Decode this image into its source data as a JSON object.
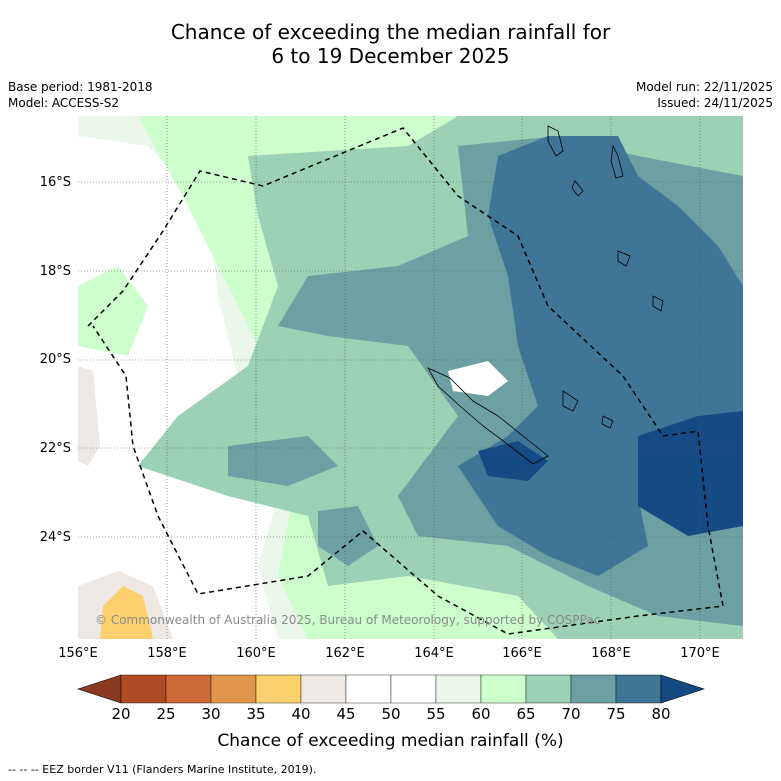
{
  "title": {
    "line1": "Chance of exceeding the median rainfall for",
    "line2": "6 to 19 December 2025"
  },
  "meta": {
    "base_period": "Base period: 1981-2018",
    "model": "Model: ACCESS-S2",
    "model_run": "Model run: 22/11/2025",
    "issued": "Issued: 24/11/2025"
  },
  "axes": {
    "lat_labels": [
      "16°S",
      "18°S",
      "20°S",
      "22°S",
      "24°S"
    ],
    "lon_labels": [
      "156°E",
      "158°E",
      "160°E",
      "162°E",
      "164°E",
      "166°E",
      "168°E",
      "170°E"
    ]
  },
  "copyright": "© Commonwealth of Australia 2025, Bureau of Meteorology, supported by COSPPac",
  "colorbar": {
    "title": "Chance of exceeding median rainfall (%)",
    "ticks": [
      "20",
      "25",
      "30",
      "35",
      "40",
      "45",
      "50",
      "55",
      "60",
      "65",
      "70",
      "75",
      "80"
    ],
    "colors": [
      "#8c3a1f",
      "#b04c25",
      "#cd6a35",
      "#e0954a",
      "#fdd06e",
      "#ede8e4",
      "#ffffff",
      "#ffffff",
      "#eaf7ea",
      "#ccffcc",
      "#9bd1b5",
      "#6da0a2",
      "#3f7597",
      "#164a85"
    ]
  },
  "footnote": "--  --  -- EEZ border V11 (Flanders Marine Institute, 2019)."
}
